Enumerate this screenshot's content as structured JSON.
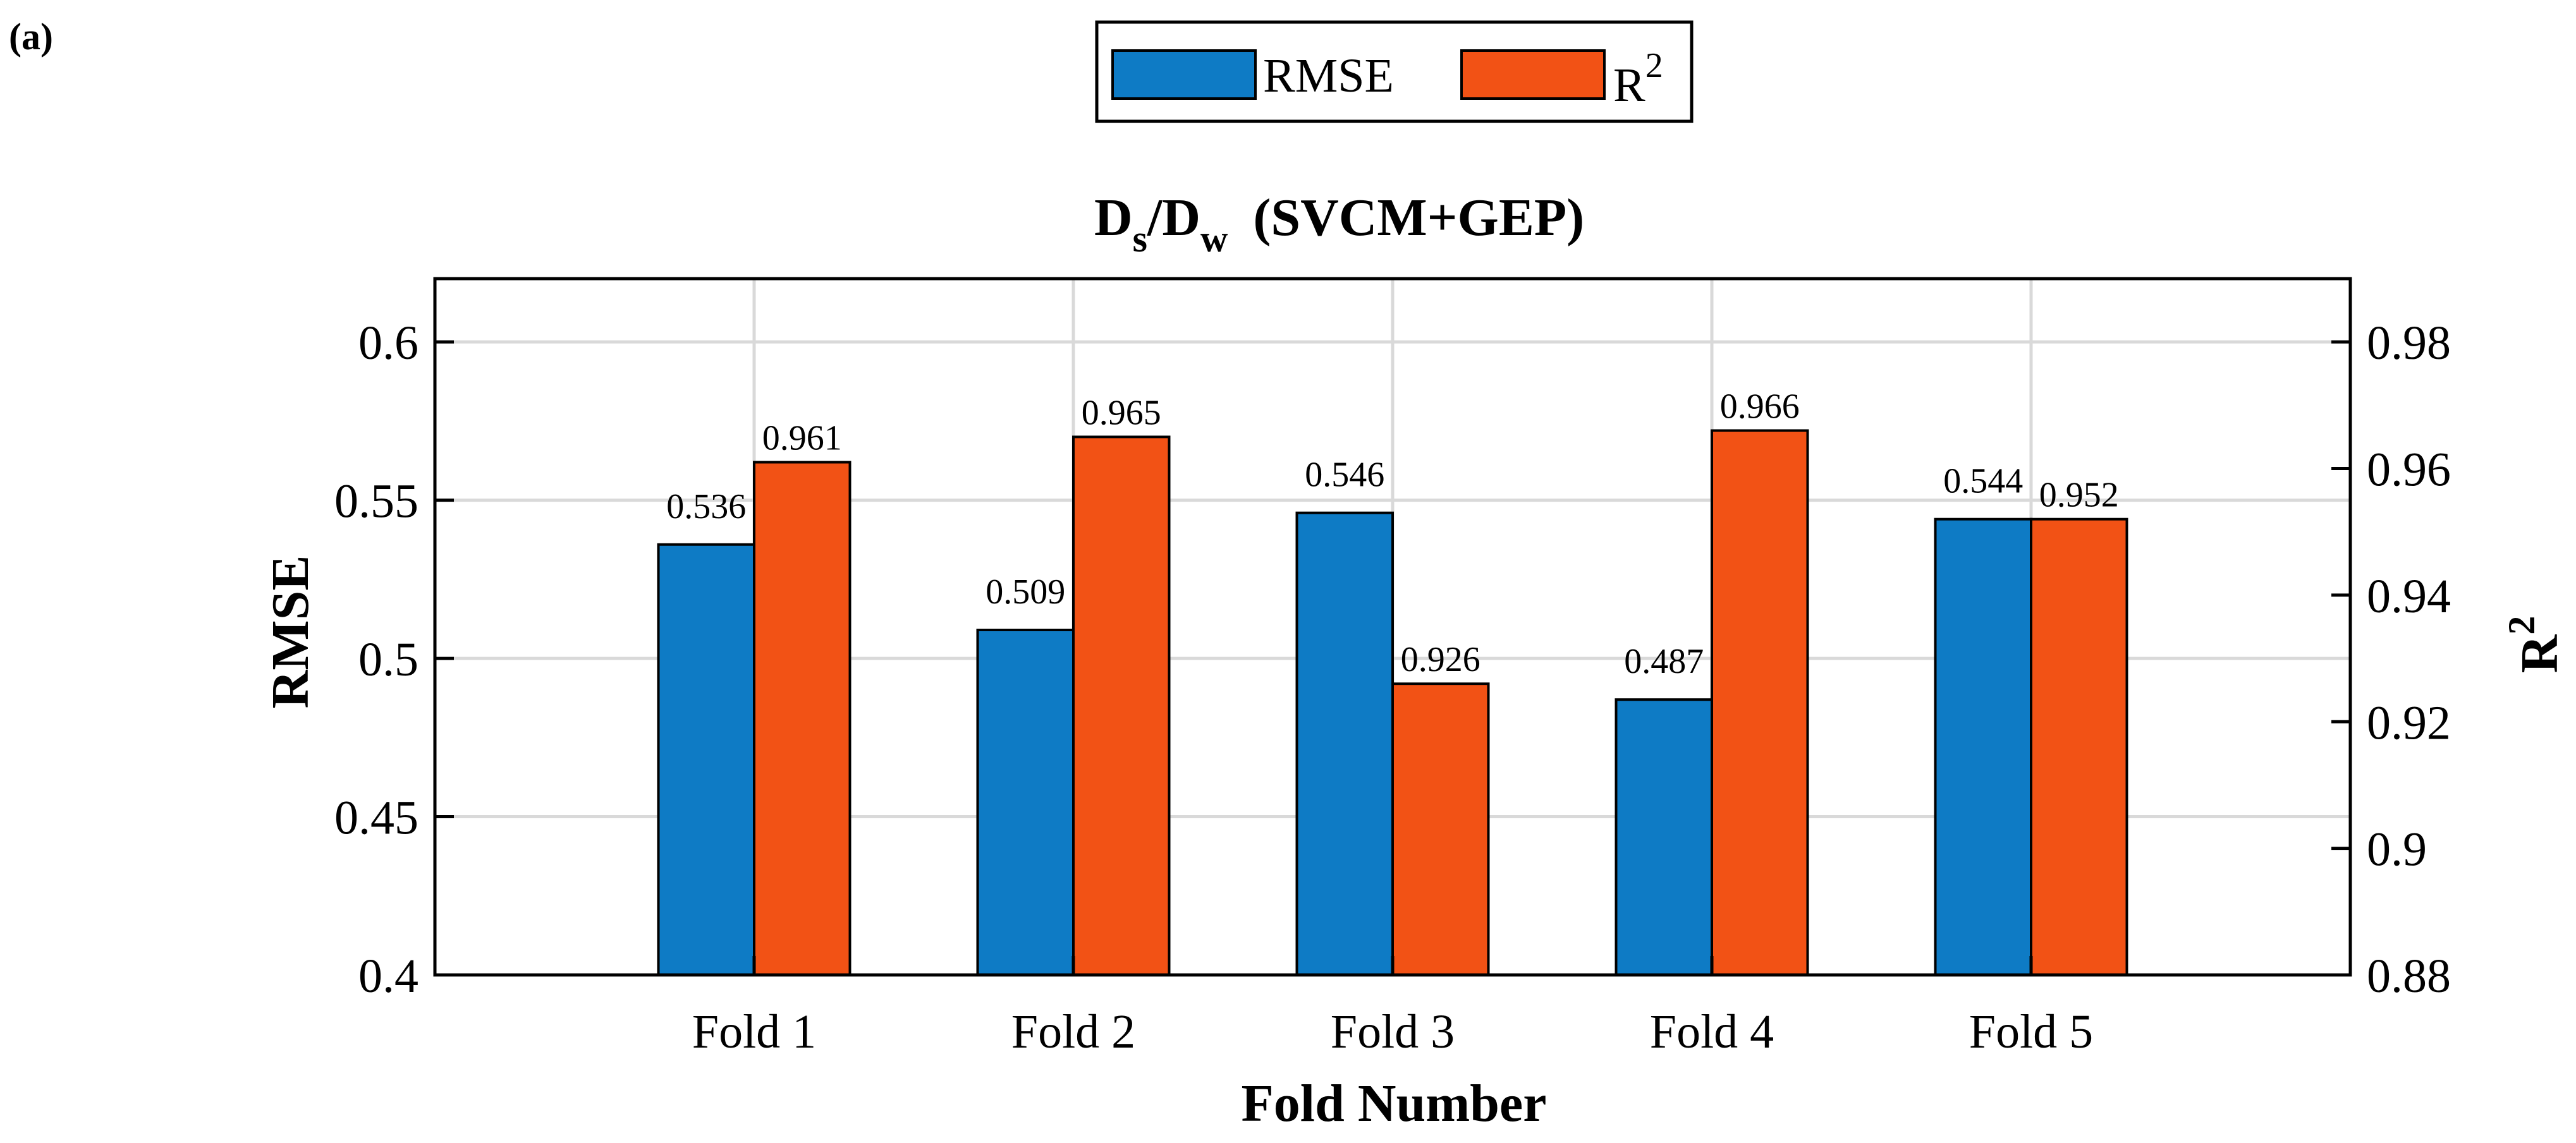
{
  "panel_label": "(a)",
  "title_parts": {
    "d1": "D",
    "sub1": "s",
    "slash": "/D",
    "sub2": "w",
    "rest": "(SVCM+GEP)"
  },
  "xlabel": "Fold Number",
  "ylabel_left": "RMSE",
  "ylabel_right_base": "R",
  "ylabel_right_sup": "2",
  "legend": {
    "rmse_label": "RMSE",
    "r2_base": "R",
    "r2_sup": "2"
  },
  "colors": {
    "rmse": "#0e7bc5",
    "r2": "#f25215",
    "grid": "#d9d9d9",
    "axis": "#000000"
  },
  "chart_data": {
    "type": "bar",
    "categories": [
      "Fold 1",
      "Fold 2",
      "Fold 3",
      "Fold 4",
      "Fold 5"
    ],
    "series": [
      {
        "name": "RMSE",
        "axis": "left",
        "values": [
          0.536,
          0.509,
          0.546,
          0.487,
          0.544
        ],
        "labels": [
          "0.536",
          "0.509",
          "0.546",
          "0.487",
          "0.544"
        ]
      },
      {
        "name": "R²",
        "axis": "right",
        "values": [
          0.961,
          0.965,
          0.926,
          0.966,
          0.952
        ],
        "labels": [
          "0.961",
          "0.965",
          "0.926",
          "0.966",
          "0.952"
        ]
      }
    ],
    "ylim_left": [
      0.4,
      0.62
    ],
    "ylim_right": [
      0.88,
      0.99
    ],
    "yticks_left": [
      "0.4",
      "0.45",
      "0.5",
      "0.55",
      "0.6"
    ],
    "yticks_right": [
      "0.88",
      "0.9",
      "0.92",
      "0.94",
      "0.96",
      "0.98"
    ],
    "xlim": [
      0,
      6
    ],
    "grid": true,
    "legend_position": "top-center"
  }
}
